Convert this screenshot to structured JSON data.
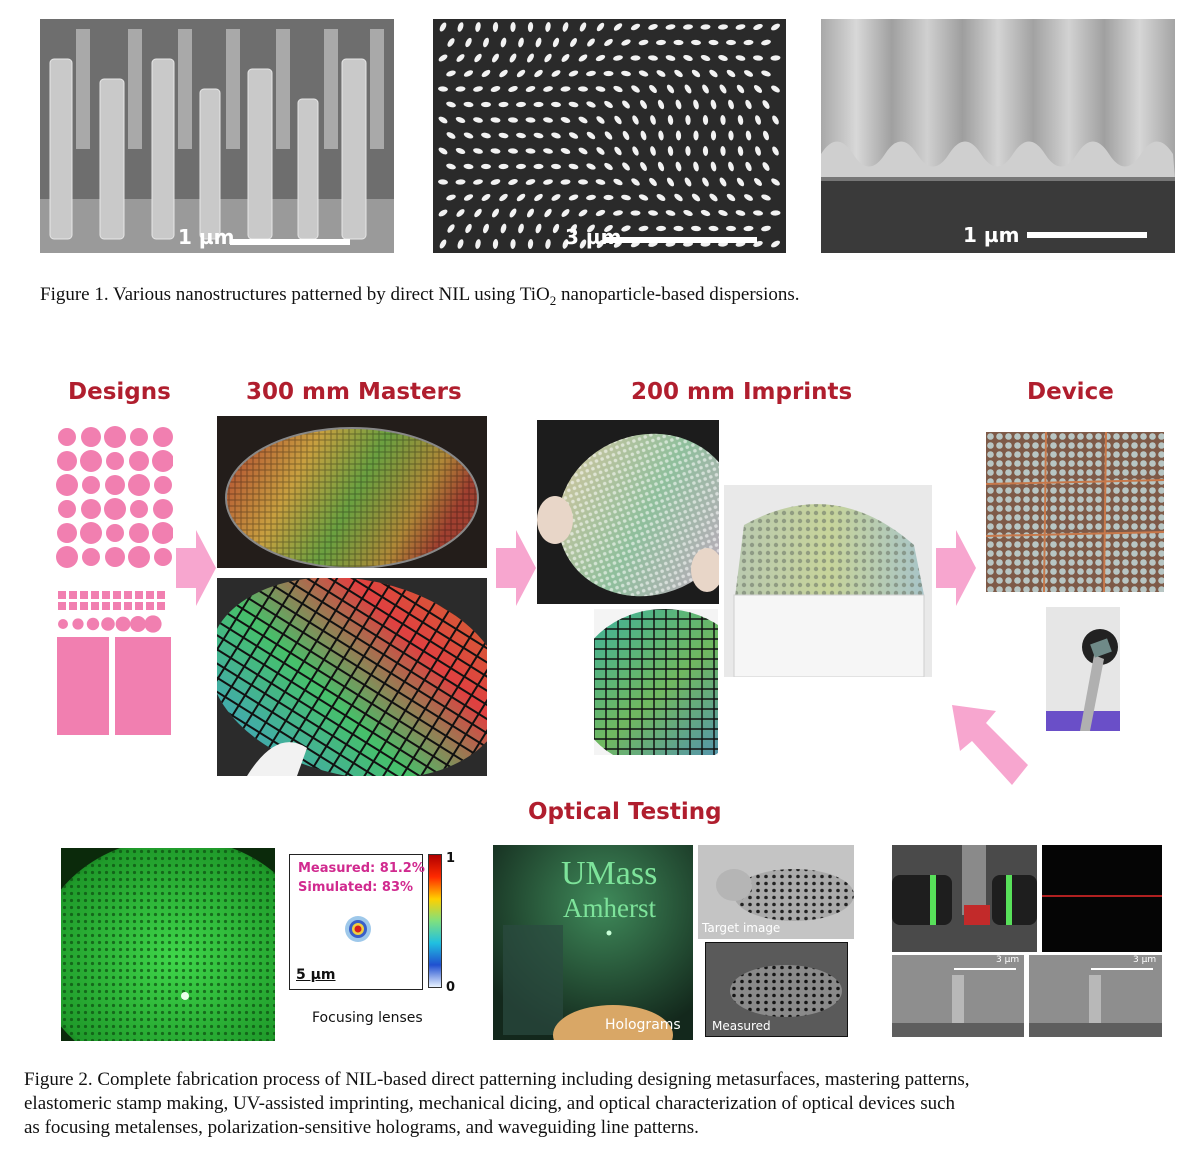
{
  "figure1": {
    "scalebars": [
      "1 µm",
      "3 µm",
      "1 µm"
    ],
    "caption_prefix": "Figure 1. Various nanostructures patterned by direct NIL using TiO",
    "caption_sub": "2",
    "caption_suffix": " nanoparticle-based dispersions."
  },
  "figure2": {
    "stages": {
      "designs": "Designs",
      "masters": "300 mm Masters",
      "imprints": "200 mm Imprints",
      "device": "Device",
      "optical_testing": "Optical Testing"
    },
    "focus_panel": {
      "measured": "Measured: 81.2%",
      "simulated": "Simulated: 83%",
      "scale": "5 µm",
      "colorbar_max": "1",
      "colorbar_min": "0",
      "label": "Focusing lenses"
    },
    "hologram_panel": {
      "logo_line1": "UMass",
      "logo_line2": "Amherst",
      "holograms_label": "Holograms",
      "target_label": "Target image",
      "measured_label": "Measured"
    },
    "waveguide_panel": {
      "scale_left": "3 µm",
      "scale_right": "3 µm"
    },
    "caption": [
      "Figure 2. Complete fabrication process of NIL-based direct patterning including designing metasurfaces, mastering patterns,",
      "elastomeric stamp making, UV-assisted imprinting, mechanical dicing, and optical characterization of optical devices such",
      "as focusing metalenses, polarization-sensitive holograms, and waveguiding line patterns."
    ]
  },
  "colors": {
    "stage_title": "#b01e2e",
    "design_pink": "#f17fb0",
    "arrow_pink": "#f7a6cf",
    "focus_text": "#d12a8f"
  }
}
